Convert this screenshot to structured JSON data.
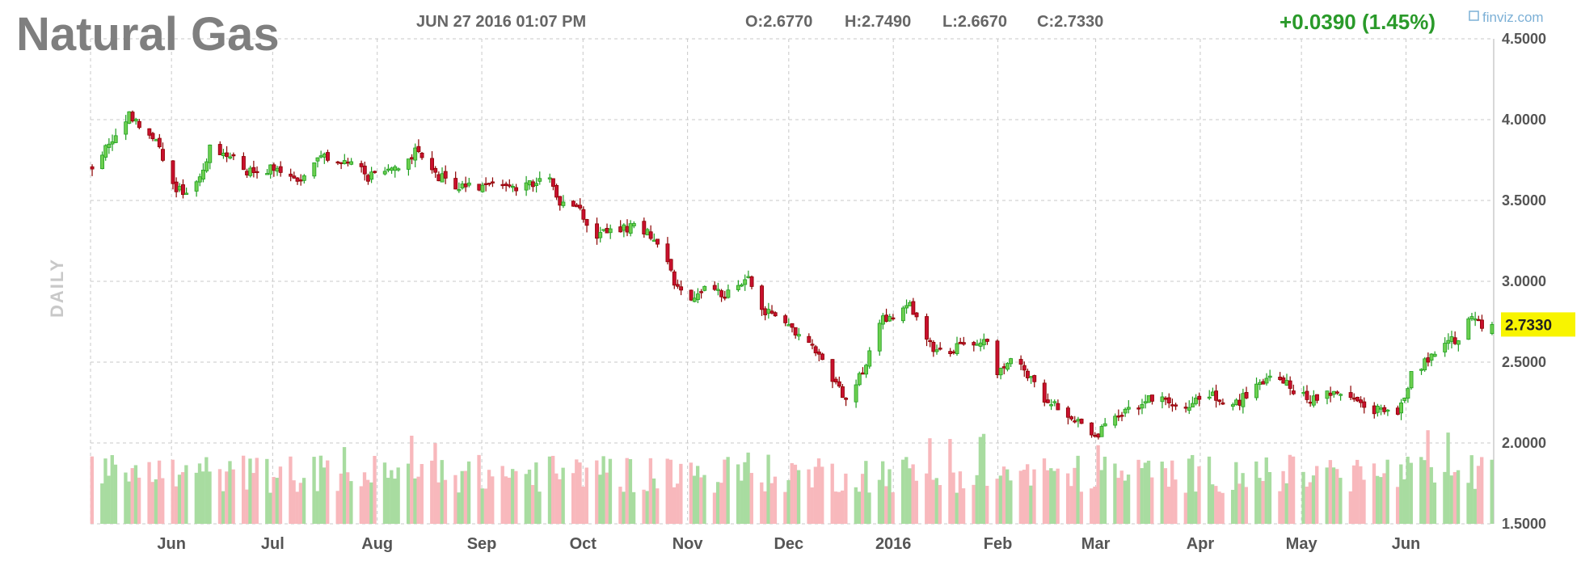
{
  "header": {
    "title": "Natural Gas",
    "date": "JUN 27 2016 01:07 PM",
    "open": "O:2.6770",
    "high": "H:2.7490",
    "low": "L:2.6670",
    "close": "C:2.7330",
    "change": "+0.0390 (1.45%)",
    "brand": "finviz.com"
  },
  "period_label": "DAILY",
  "last_price_label": "2.7330",
  "colors": {
    "up": "#1e9e1e",
    "up_fill": "#6ccf50",
    "down": "#8b0000",
    "down_fill": "#c8102e",
    "volume_up": "#a8dca0",
    "volume_down": "#f8b8bc",
    "grid": "#c8c8c8",
    "change_text": "#2a9a2a",
    "last_price_bg": "#f8f400"
  },
  "chart_data": {
    "type": "candlestick",
    "title": "Natural Gas",
    "period": "DAILY",
    "ylim": [
      1.5,
      4.5
    ],
    "y_ticks": [
      "4.5000",
      "4.0000",
      "3.5000",
      "3.0000",
      "2.5000",
      "2.0000",
      "1.5000"
    ],
    "x_tick_labels": [
      "Jun",
      "Jul",
      "Aug",
      "Sep",
      "Oct",
      "Nov",
      "Dec",
      "2016",
      "Feb",
      "Mar",
      "Apr",
      "May",
      "Jun"
    ],
    "x_range": [
      "2015-05-08",
      "2016-06-27"
    ],
    "grid": true,
    "last_price": 2.733,
    "ohlc_last": {
      "open": 2.677,
      "high": 2.749,
      "low": 2.667,
      "close": 2.733,
      "change": 0.039,
      "change_pct": 1.45
    },
    "close_path": [
      [
        "2015-05-08",
        3.72
      ],
      [
        "2015-05-13",
        3.86
      ],
      [
        "2015-05-19",
        4.02
      ],
      [
        "2015-05-22",
        3.98
      ],
      [
        "2015-05-27",
        3.88
      ],
      [
        "2015-06-01",
        3.58
      ],
      [
        "2015-06-05",
        3.55
      ],
      [
        "2015-06-09",
        3.63
      ],
      [
        "2015-06-12",
        3.82
      ],
      [
        "2015-06-17",
        3.8
      ],
      [
        "2015-06-22",
        3.68
      ],
      [
        "2015-06-29",
        3.68
      ],
      [
        "2015-07-02",
        3.72
      ],
      [
        "2015-07-08",
        3.6
      ],
      [
        "2015-07-14",
        3.78
      ],
      [
        "2015-07-20",
        3.76
      ],
      [
        "2015-07-24",
        3.74
      ],
      [
        "2015-07-29",
        3.64
      ],
      [
        "2015-08-04",
        3.72
      ],
      [
        "2015-08-09",
        3.72
      ],
      [
        "2015-08-12",
        3.8
      ],
      [
        "2015-08-18",
        3.66
      ],
      [
        "2015-08-24",
        3.6
      ],
      [
        "2015-08-29",
        3.58
      ],
      [
        "2015-09-04",
        3.6
      ],
      [
        "2015-09-10",
        3.58
      ],
      [
        "2015-09-16",
        3.6
      ],
      [
        "2015-09-20",
        3.66
      ],
      [
        "2015-09-24",
        3.5
      ],
      [
        "2015-09-29",
        3.48
      ],
      [
        "2015-10-04",
        3.28
      ],
      [
        "2015-10-10",
        3.32
      ],
      [
        "2015-10-16",
        3.34
      ],
      [
        "2015-10-20",
        3.3
      ],
      [
        "2015-10-24",
        3.22
      ],
      [
        "2015-10-28",
        3.0
      ],
      [
        "2015-11-02",
        2.9
      ],
      [
        "2015-11-07",
        2.96
      ],
      [
        "2015-11-13",
        2.92
      ],
      [
        "2015-11-19",
        3.0
      ],
      [
        "2015-11-23",
        2.84
      ],
      [
        "2015-11-28",
        2.75
      ],
      [
        "2015-12-04",
        2.66
      ],
      [
        "2015-12-10",
        2.54
      ],
      [
        "2015-12-15",
        2.35
      ],
      [
        "2015-12-19",
        2.25
      ],
      [
        "2015-12-23",
        2.45
      ],
      [
        "2015-12-28",
        2.75
      ],
      [
        "2016-01-02",
        2.8
      ],
      [
        "2016-01-05",
        2.88
      ],
      [
        "2016-01-10",
        2.72
      ],
      [
        "2016-01-13",
        2.56
      ],
      [
        "2016-01-18",
        2.58
      ],
      [
        "2016-01-23",
        2.6
      ],
      [
        "2016-01-28",
        2.65
      ],
      [
        "2016-02-01",
        2.45
      ],
      [
        "2016-02-06",
        2.53
      ],
      [
        "2016-02-10",
        2.42
      ],
      [
        "2016-02-15",
        2.28
      ],
      [
        "2016-02-20",
        2.2
      ],
      [
        "2016-02-25",
        2.12
      ],
      [
        "2016-03-01",
        2.03
      ],
      [
        "2016-03-05",
        2.12
      ],
      [
        "2016-03-10",
        2.2
      ],
      [
        "2016-03-15",
        2.25
      ],
      [
        "2016-03-20",
        2.3
      ],
      [
        "2016-03-25",
        2.22
      ],
      [
        "2016-03-30",
        2.25
      ],
      [
        "2016-04-05",
        2.3
      ],
      [
        "2016-04-10",
        2.2
      ],
      [
        "2016-04-15",
        2.3
      ],
      [
        "2016-04-20",
        2.38
      ],
      [
        "2016-04-25",
        2.42
      ],
      [
        "2016-04-30",
        2.3
      ],
      [
        "2016-05-05",
        2.27
      ],
      [
        "2016-05-10",
        2.3
      ],
      [
        "2016-05-15",
        2.33
      ],
      [
        "2016-05-20",
        2.22
      ],
      [
        "2016-05-25",
        2.2
      ],
      [
        "2016-05-30",
        2.18
      ],
      [
        "2016-06-03",
        2.42
      ],
      [
        "2016-06-08",
        2.52
      ],
      [
        "2016-06-13",
        2.62
      ],
      [
        "2016-06-17",
        2.65
      ],
      [
        "2016-06-21",
        2.8
      ],
      [
        "2016-06-24",
        2.72
      ],
      [
        "2016-06-27",
        2.733
      ]
    ]
  }
}
